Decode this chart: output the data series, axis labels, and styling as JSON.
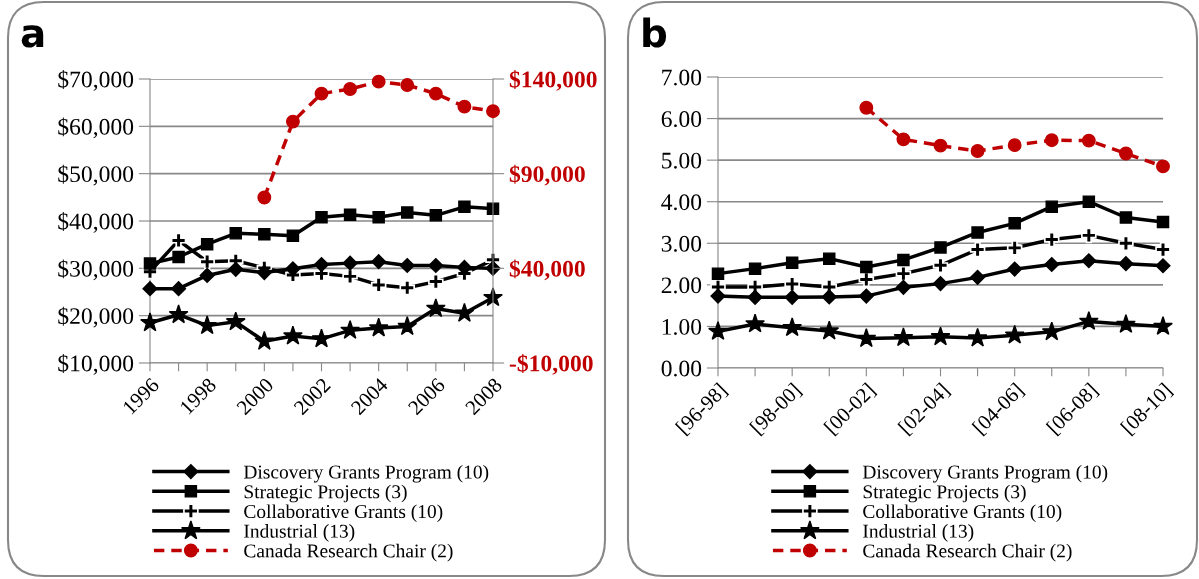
{
  "chart_data": [
    {
      "type": "line",
      "title": "a",
      "x": [
        1996,
        1997,
        1998,
        1999,
        2000,
        2001,
        2002,
        2003,
        2004,
        2005,
        2006,
        2007,
        2008
      ],
      "xlim": [
        1996,
        2008
      ],
      "xticks": [
        1996,
        {
          "value": 1997,
          "label": null
        },
        1998,
        {
          "value": 1999,
          "label": null
        },
        2000,
        {
          "value": 2001,
          "label": null
        },
        2002,
        {
          "value": 2003,
          "label": null
        },
        2004,
        {
          "value": 2005,
          "label": null
        },
        2006,
        {
          "value": 2007,
          "label": null
        },
        2008
      ],
      "ylim": [
        10000,
        70000
      ],
      "yticks": [
        {
          "value": 10000,
          "label": "$10,000"
        },
        {
          "value": 20000,
          "label": "$20,000"
        },
        {
          "value": 30000,
          "label": "$30,000"
        },
        {
          "value": 40000,
          "label": "$40,000"
        },
        {
          "value": 50000,
          "label": "$50,000"
        },
        {
          "value": 60000,
          "label": "$60,000"
        },
        {
          "value": 70000,
          "label": "$70,000"
        }
      ],
      "y2lim": [
        -10000,
        140000
      ],
      "y2ticks": [
        {
          "value": -10000,
          "label": "-$10,000"
        },
        {
          "value": 40000,
          "label": "$40,000"
        },
        {
          "value": 90000,
          "label": "$90,000"
        },
        {
          "value": 140000,
          "label": "$140,000"
        }
      ],
      "grid": "y",
      "legend": "bottom",
      "series": [
        {
          "name": "Discovery Grants Program (10)",
          "color": "#000000",
          "marker": "diamond",
          "line_style": "solid",
          "values": [
            25700,
            25700,
            28500,
            29800,
            29100,
            29900,
            30800,
            31100,
            31400,
            30600,
            30600,
            30200,
            30000
          ]
        },
        {
          "name": "Strategic Projects (3)",
          "color": "#000000",
          "marker": "square",
          "line_style": "solid",
          "values": [
            31000,
            32400,
            35100,
            37400,
            37200,
            36900,
            40800,
            41300,
            40800,
            41800,
            41200,
            43000,
            42600
          ]
        },
        {
          "name": "Collaborative Grants (10)",
          "color": "#000000",
          "marker": "cross",
          "line_style": "solid",
          "values": [
            29300,
            35900,
            31400,
            31600,
            30100,
            28600,
            28900,
            28300,
            26500,
            25900,
            27200,
            28900,
            31800
          ]
        },
        {
          "name": "Industrial (13)",
          "color": "#000000",
          "marker": "star",
          "line_style": "solid",
          "values": [
            18500,
            20200,
            17900,
            18700,
            14600,
            15700,
            15100,
            16900,
            17400,
            17700,
            21500,
            20500,
            23800
          ]
        },
        {
          "name": "Canada Research Chair (2)",
          "color": "#c00000",
          "marker": "circle",
          "line_style": "dashed",
          "axis": "y2",
          "values": [
            null,
            null,
            null,
            null,
            77400,
            117500,
            132300,
            134700,
            138600,
            136800,
            132300,
            125400,
            123000
          ]
        }
      ]
    },
    {
      "type": "line",
      "title": "b",
      "categories": [
        "[96-98]",
        null,
        "[98-00]",
        null,
        "[00-02]",
        null,
        "[02-04]",
        null,
        "[04-06]",
        null,
        "[06-08]",
        null,
        "[08-10]"
      ],
      "ylim": [
        0,
        7
      ],
      "yticks": [
        {
          "value": 0,
          "label": "0.00"
        },
        {
          "value": 1,
          "label": "1.00"
        },
        {
          "value": 2,
          "label": "2.00"
        },
        {
          "value": 3,
          "label": "3.00"
        },
        {
          "value": 4,
          "label": "4.00"
        },
        {
          "value": 5,
          "label": "5.00"
        },
        {
          "value": 6,
          "label": "6.00"
        },
        {
          "value": 7,
          "label": "7.00"
        }
      ],
      "grid": "y",
      "legend": "bottom",
      "series": [
        {
          "name": "Discovery Grants Program (10)",
          "color": "#000000",
          "marker": "diamond",
          "line_style": "solid",
          "values": [
            1.73,
            1.7,
            1.7,
            1.71,
            1.73,
            1.94,
            2.03,
            2.18,
            2.38,
            2.49,
            2.58,
            2.51,
            2.46
          ]
        },
        {
          "name": "Strategic Projects (3)",
          "color": "#000000",
          "marker": "square",
          "line_style": "solid",
          "values": [
            2.27,
            2.39,
            2.53,
            2.63,
            2.43,
            2.6,
            2.9,
            3.26,
            3.48,
            3.88,
            4.0,
            3.62,
            3.51
          ]
        },
        {
          "name": "Collaborative Grants (10)",
          "color": "#000000",
          "marker": "cross",
          "line_style": "solid",
          "values": [
            1.95,
            1.95,
            2.02,
            1.95,
            2.13,
            2.27,
            2.47,
            2.85,
            2.89,
            3.09,
            3.19,
            3.0,
            2.85
          ]
        },
        {
          "name": "Industrial (13)",
          "color": "#000000",
          "marker": "star",
          "line_style": "solid",
          "values": [
            0.88,
            1.06,
            0.97,
            0.89,
            0.71,
            0.73,
            0.75,
            0.72,
            0.79,
            0.87,
            1.12,
            1.05,
            1.0
          ]
        },
        {
          "name": "Canada Research Chair (2)",
          "color": "#c00000",
          "marker": "circle",
          "line_style": "dashed",
          "values": [
            null,
            null,
            null,
            null,
            6.26,
            5.5,
            5.35,
            5.22,
            5.36,
            5.48,
            5.47,
            5.16,
            4.85
          ]
        }
      ]
    }
  ]
}
